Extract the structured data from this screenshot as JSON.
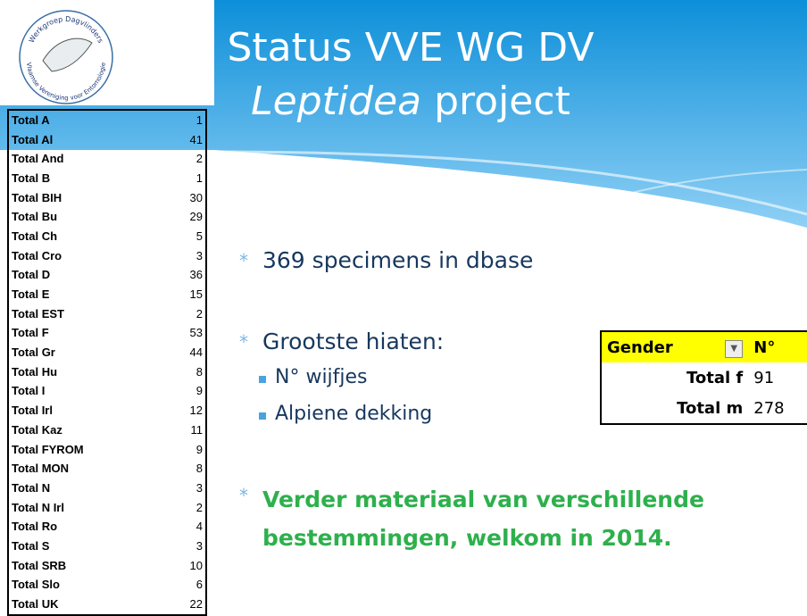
{
  "header": {
    "title_line1": "Status VVE WG DV",
    "title_italic": "Leptidea",
    "title_rest": "project"
  },
  "logo": {
    "top_text": "Werkgroep Dagvlinders",
    "bottom_text": "Vlaamse Vereniging voor Entomologie"
  },
  "country_table": {
    "rows": [
      [
        "Total A",
        1
      ],
      [
        "Total Al",
        41
      ],
      [
        "Total And",
        2
      ],
      [
        "Total B",
        1
      ],
      [
        "Total BIH",
        30
      ],
      [
        "Total Bu",
        29
      ],
      [
        "Total Ch",
        5
      ],
      [
        "Total Cro",
        3
      ],
      [
        "Total D",
        36
      ],
      [
        "Total E",
        15
      ],
      [
        "Total EST",
        2
      ],
      [
        "Total F",
        53
      ],
      [
        "Total Gr",
        44
      ],
      [
        "Total Hu",
        8
      ],
      [
        "Total I",
        9
      ],
      [
        "Total Irl",
        12
      ],
      [
        "Total Kaz",
        11
      ],
      [
        "Total FYROM",
        9
      ],
      [
        "Total MON",
        8
      ],
      [
        "Total N",
        3
      ],
      [
        "Total N Irl",
        2
      ],
      [
        "Total Ro",
        4
      ],
      [
        "Total S",
        3
      ],
      [
        "Total SRB",
        10
      ],
      [
        "Total Slo",
        6
      ],
      [
        "Total UK",
        22
      ]
    ]
  },
  "bullets": {
    "item1": "369 specimens in dbase",
    "item2": "Grootste hiaten:",
    "sub_items": [
      "N° wijfjes",
      "Alpiene dekking"
    ],
    "item3": "Verder materiaal van verschillende bestemmingen, welkom in 2014."
  },
  "gender_table": {
    "header": [
      "Gender",
      "N°"
    ],
    "rows": [
      [
        "Total f",
        91
      ],
      [
        "Total m",
        278
      ]
    ]
  }
}
